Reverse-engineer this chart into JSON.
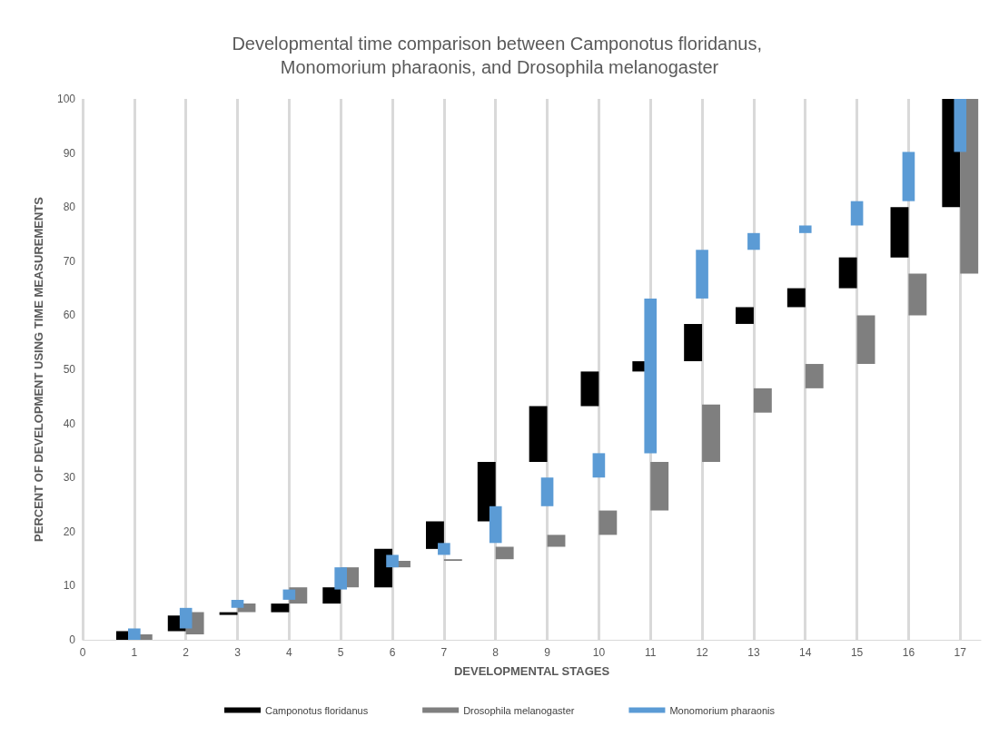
{
  "chart_data": {
    "type": "bar",
    "title": "Developmental time comparison between Camponotus floridanus, Monomorium pharaonis, and Drosophila melanogaster",
    "xlabel": "DEVELOPMENTAL STAGES",
    "ylabel": "PERCENT OF DEVELOPMENT USING TIME MEASUREMENTS",
    "x": [
      1,
      2,
      3,
      4,
      5,
      6,
      7,
      8,
      9,
      10,
      11,
      12,
      13,
      14,
      15,
      16,
      17
    ],
    "series": [
      {
        "name": "Camponotus floridanus",
        "color": "#000000",
        "base": [
          0,
          1.6,
          4.6,
          5.1,
          6.7,
          9.7,
          16.8,
          21.9,
          32.9,
          43.2,
          49.6,
          51.5,
          58.4,
          61.5,
          65.0,
          70.7,
          80.0
        ],
        "values": [
          1.6,
          2.9,
          0.5,
          1.6,
          3.0,
          7.1,
          5.1,
          11.0,
          10.3,
          6.4,
          1.9,
          6.9,
          3.1,
          3.5,
          5.7,
          9.3,
          20.0
        ]
      },
      {
        "name": "Drosophila melanogaster",
        "color": "#7f7f7f",
        "base": [
          0,
          1.0,
          5.1,
          6.7,
          9.7,
          13.4,
          14.6,
          14.9,
          17.2,
          19.4,
          23.9,
          32.9,
          42.0,
          46.5,
          51.0,
          60.0,
          67.7
        ],
        "values": [
          1.0,
          4.1,
          1.6,
          3.0,
          3.7,
          1.2,
          0.3,
          2.3,
          2.2,
          4.5,
          9.0,
          10.6,
          4.5,
          4.5,
          9.0,
          7.7,
          32.3
        ]
      },
      {
        "name": "Monomorium pharaonis",
        "color": "#5b9bd5",
        "base": [
          0,
          2.1,
          5.9,
          7.4,
          9.3,
          13.4,
          15.7,
          17.9,
          24.7,
          30.0,
          34.5,
          63.1,
          72.1,
          75.2,
          76.6,
          81.1,
          90.2
        ],
        "values": [
          2.1,
          3.8,
          1.5,
          1.9,
          4.1,
          2.3,
          2.2,
          6.8,
          5.3,
          4.5,
          28.6,
          9.0,
          3.1,
          1.4,
          4.5,
          9.1,
          9.8
        ]
      }
    ],
    "xlim": [
      0,
      17.4
    ],
    "xticks": [
      0,
      1,
      2,
      3,
      4,
      5,
      6,
      7,
      8,
      9,
      10,
      11,
      12,
      13,
      14,
      15,
      16,
      17
    ],
    "ylim": [
      0,
      100
    ],
    "yticks": [
      0,
      10,
      20,
      30,
      40,
      50,
      60,
      70,
      80,
      90,
      100
    ],
    "grid": "x",
    "legend": "bottom"
  }
}
